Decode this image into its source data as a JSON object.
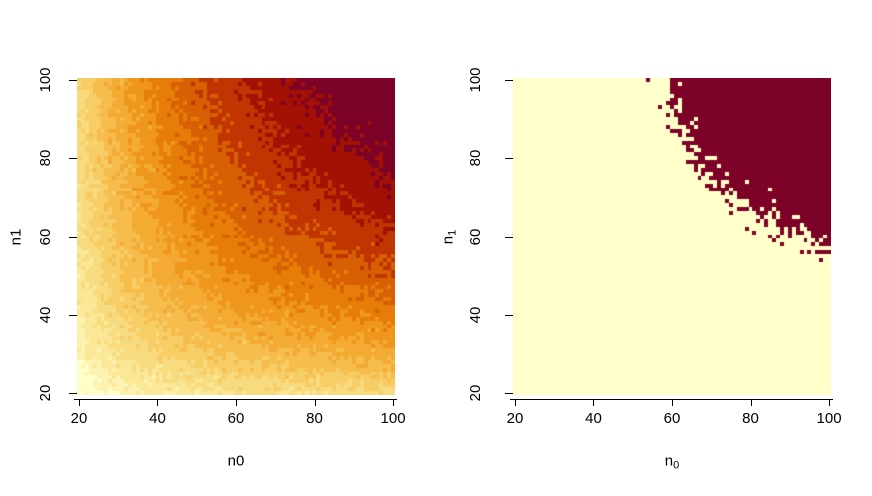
{
  "figure": {
    "background": "#FFFFFF",
    "text_color": "#000000",
    "axis_color": "#000000"
  },
  "chart_data": [
    {
      "type": "heatmap",
      "position": "left",
      "title": "",
      "xlabel": {
        "label": "n0",
        "subscript": ""
      },
      "ylabel": {
        "label": "n1",
        "subscript": ""
      },
      "x_ticks": [
        20,
        40,
        60,
        80,
        100
      ],
      "y_ticks": [
        20,
        40,
        60,
        80,
        100
      ],
      "xlim": [
        19.5,
        100.5
      ],
      "ylim": [
        19.5,
        100.5
      ],
      "grid_cells": {
        "nx": 81,
        "ny": 81,
        "n0_range": [
          20,
          100
        ],
        "n1_range": [
          20,
          100
        ]
      },
      "palette": [
        "#FFFFC9",
        "#FCF3B1",
        "#FAE896",
        "#F8DB7E",
        "#F7CD66",
        "#F6BD4D",
        "#F3AB34",
        "#EF961C",
        "#E67D08",
        "#D66003",
        "#C03502",
        "#A31104",
        "#7D0227"
      ],
      "band_breaks_t": [
        0.061,
        0.124,
        0.188,
        0.253,
        0.32,
        0.388,
        0.458,
        0.53,
        0.606,
        0.687,
        0.773,
        0.869
      ],
      "value_model": "t = (sqrt(n0*n1/(n0+n1)) - 3.1623) / (7.0711 - 3.1623) plus per-cell simulation noise (sd 0.022); t binned into 13 ascending color bands (pale yellow low, dark burgundy high)",
      "grid": "off",
      "legend": "none"
    },
    {
      "type": "heatmap",
      "position": "right",
      "title": "",
      "xlabel": {
        "label": "n",
        "subscript": "0"
      },
      "ylabel": {
        "label": "n",
        "subscript": "1"
      },
      "x_ticks": [
        20,
        40,
        60,
        80,
        100
      ],
      "y_ticks": [
        20,
        40,
        60,
        80,
        100
      ],
      "xlim": [
        19.5,
        100.5
      ],
      "ylim": [
        19.5,
        100.5
      ],
      "grid_cells": {
        "nx": 81,
        "ny": 81,
        "n0_range": [
          20,
          100
        ],
        "n1_range": [
          20,
          100
        ]
      },
      "colors": {
        "below_threshold": "#FFFFC9",
        "above_threshold": "#7D0227"
      },
      "threshold_t": 0.735,
      "value_model": "same noisy t field as left plot; cell dark burgundy where t >= 0.735 (boundary approx n0*n1/(n0+n1) = 36, i.e. n0 ~ 58 at n1 = 100 and n1 ~ 56 at n0 = 100, jagged from simulation noise), pale yellow otherwise",
      "grid": "off",
      "legend": "none"
    }
  ],
  "simulation": {
    "noise_seed": 7,
    "noise_sd_t": 0.022
  }
}
